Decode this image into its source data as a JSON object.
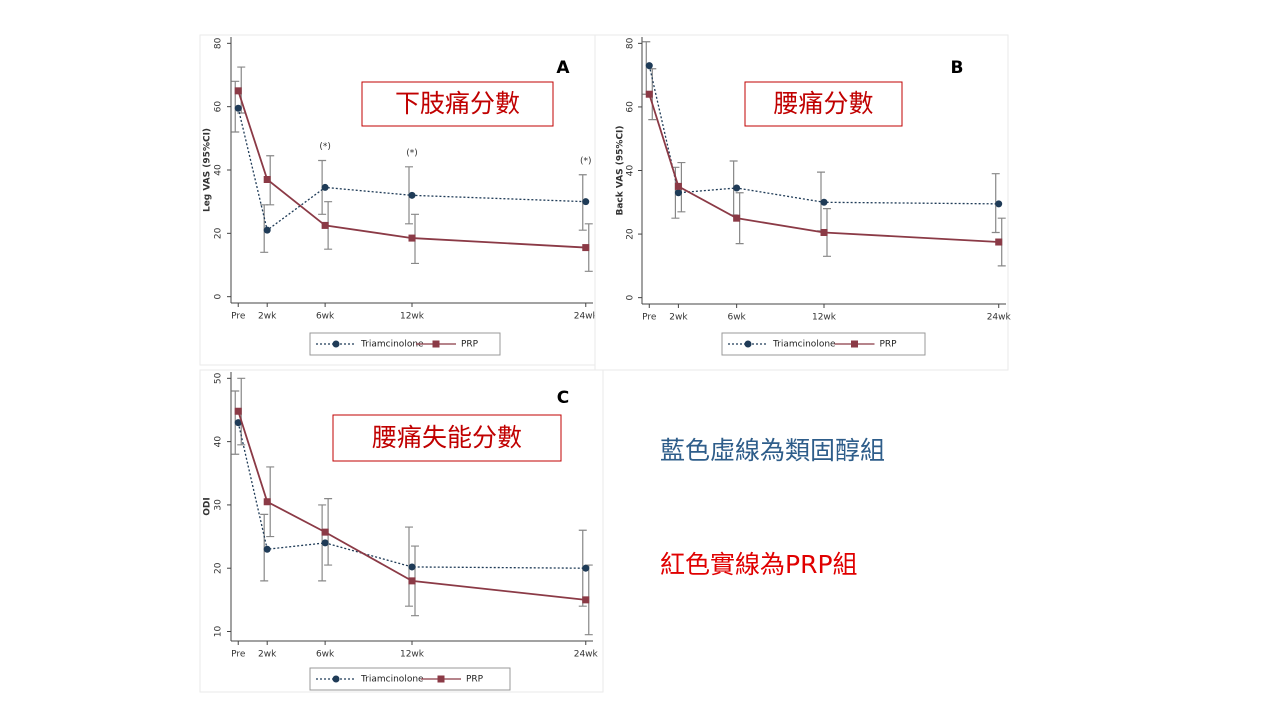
{
  "chart_data": [
    {
      "type": "line",
      "panel_label": "A",
      "title": "下肢痛分數",
      "y_label": "Leg VAS (95%CI)",
      "x": [
        0,
        2,
        6,
        12,
        24
      ],
      "xticks": [
        {
          "value": 0,
          "label": "Pre"
        },
        {
          "value": 2,
          "label": "2wk"
        },
        {
          "value": 6,
          "label": "6wk"
        },
        {
          "value": 12,
          "label": "12wk"
        },
        {
          "value": 24,
          "label": "24wk"
        }
      ],
      "xlim": [
        -0.5,
        24.5
      ],
      "ylim": [
        -2,
        82
      ],
      "yticks": [
        0,
        20,
        40,
        60,
        80
      ],
      "annotations": [
        {
          "x": 6,
          "text": "(*)"
        },
        {
          "x": 12,
          "text": "(*)"
        },
        {
          "x": 24,
          "text": "(*)"
        }
      ],
      "legend": "bottom",
      "series": [
        {
          "name": "Triamcinolone",
          "color": "#1f3b57",
          "dash": "dotted",
          "marker": "circle",
          "values": [
            59.5,
            21,
            34.5,
            32,
            30
          ],
          "lower": [
            52,
            14,
            26,
            23,
            21
          ],
          "upper": [
            68,
            29,
            43,
            41,
            38.5
          ]
        },
        {
          "name": "PRP",
          "color": "#8b3a46",
          "dash": "solid",
          "marker": "square",
          "values": [
            65,
            37,
            22.5,
            18.5,
            15.5
          ],
          "lower": [
            58,
            29,
            15,
            10.5,
            8
          ],
          "upper": [
            72.5,
            44.5,
            30,
            26,
            23
          ]
        }
      ]
    },
    {
      "type": "line",
      "panel_label": "B",
      "title": "腰痛分數",
      "y_label": "Back VAS (95%CI)",
      "x": [
        0,
        2,
        6,
        12,
        24
      ],
      "xticks": [
        {
          "value": 0,
          "label": "Pre"
        },
        {
          "value": 2,
          "label": "2wk"
        },
        {
          "value": 6,
          "label": "6wk"
        },
        {
          "value": 12,
          "label": "12wk"
        },
        {
          "value": 24,
          "label": "24wk"
        }
      ],
      "xlim": [
        -0.5,
        24.5
      ],
      "ylim": [
        -2,
        82
      ],
      "yticks": [
        0,
        20,
        40,
        60,
        80
      ],
      "legend": "bottom",
      "series": [
        {
          "name": "Triamcinolone",
          "color": "#1f3b57",
          "dash": "dotted",
          "marker": "circle",
          "values": [
            73,
            33,
            34.5,
            30,
            29.5
          ],
          "lower": [
            64,
            25,
            26,
            21,
            20.5
          ],
          "upper": [
            80.5,
            41,
            43,
            39.5,
            39
          ]
        },
        {
          "name": "PRP",
          "color": "#8b3a46",
          "dash": "solid",
          "marker": "square",
          "values": [
            64,
            35,
            25,
            20.5,
            17.5
          ],
          "lower": [
            56,
            27,
            17,
            13,
            10
          ],
          "upper": [
            72,
            42.5,
            33,
            28,
            25
          ]
        }
      ]
    },
    {
      "type": "line",
      "panel_label": "C",
      "title": "腰痛失能分數",
      "y_label": "ODI",
      "x": [
        0,
        2,
        6,
        12,
        24
      ],
      "xticks": [
        {
          "value": 0,
          "label": "Pre"
        },
        {
          "value": 2,
          "label": "2wk"
        },
        {
          "value": 6,
          "label": "6wk"
        },
        {
          "value": 12,
          "label": "12wk"
        },
        {
          "value": 24,
          "label": "24wk"
        }
      ],
      "xlim": [
        -0.5,
        24.5
      ],
      "ylim": [
        8.5,
        51
      ],
      "yticks": [
        10,
        20,
        30,
        40,
        50
      ],
      "legend": "bottom",
      "series": [
        {
          "name": "Triamcinolone",
          "color": "#1f3b57",
          "dash": "dotted",
          "marker": "circle",
          "values": [
            43,
            23,
            24,
            20.2,
            20
          ],
          "lower": [
            38,
            18,
            18,
            14,
            14
          ],
          "upper": [
            48,
            28.5,
            30,
            26.5,
            26
          ]
        },
        {
          "name": "PRP",
          "color": "#8b3a46",
          "dash": "solid",
          "marker": "square",
          "values": [
            44.8,
            30.5,
            25.7,
            18,
            15
          ],
          "lower": [
            39.5,
            25,
            20.5,
            12.5,
            9.5
          ],
          "upper": [
            50,
            36,
            31,
            23.5,
            20.5
          ]
        }
      ]
    }
  ],
  "notes": [
    {
      "text": "藍色虛線為類固醇組",
      "color": "#2e5d8a"
    },
    {
      "text": "紅色實線為PRP組",
      "color": "#e00000"
    }
  ]
}
